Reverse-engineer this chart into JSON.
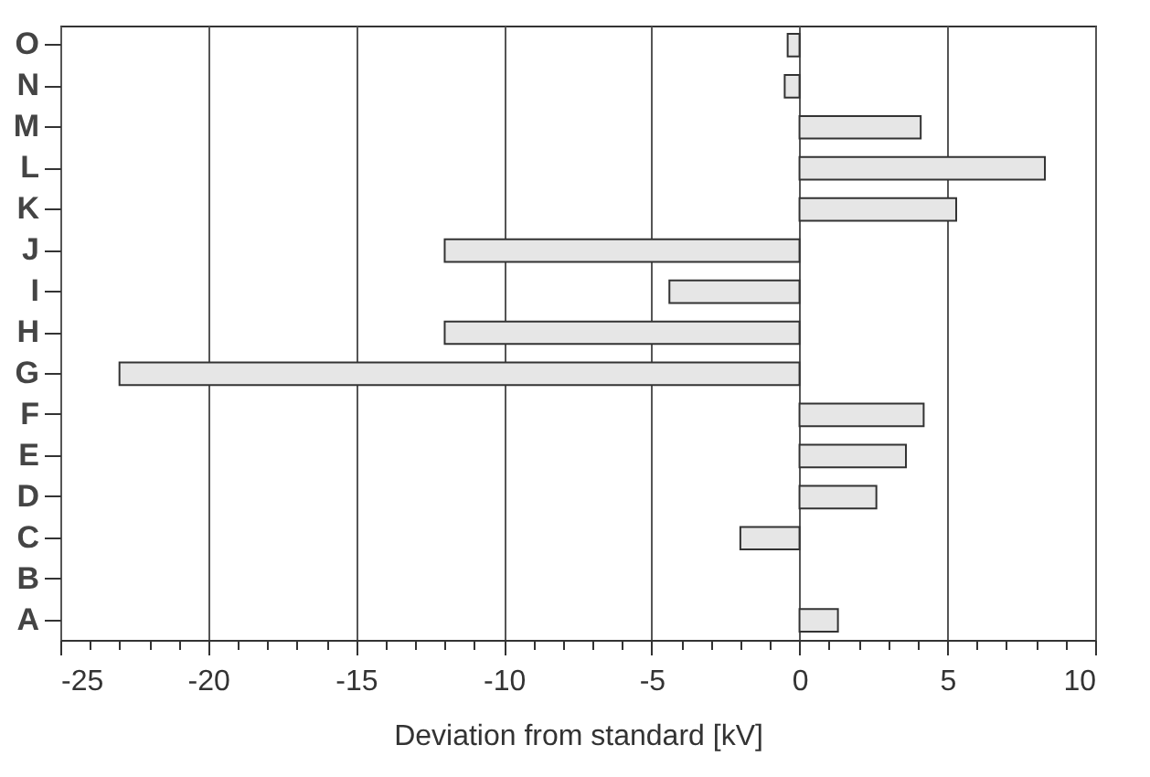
{
  "chart_data": {
    "type": "bar",
    "orientation": "horizontal",
    "xlabel": "Deviation from standard [kV]",
    "categories": [
      "O",
      "N",
      "M",
      "L",
      "K",
      "J",
      "I",
      "H",
      "G",
      "F",
      "E",
      "D",
      "C",
      "B",
      "A"
    ],
    "values": [
      -0.4,
      -0.5,
      4.1,
      8.3,
      5.3,
      -12.0,
      -4.4,
      -12.0,
      -23.0,
      4.2,
      3.6,
      2.6,
      -2.0,
      null,
      1.3
    ],
    "color": "#e6e6e6",
    "xlim": [
      -25,
      10
    ],
    "xticks": [
      -25,
      {
        "value": -24,
        "label": null
      },
      {
        "value": -23,
        "label": null
      },
      {
        "value": -22,
        "label": null
      },
      {
        "value": -21,
        "label": null
      },
      -20,
      {
        "value": -19,
        "label": null
      },
      {
        "value": -18,
        "label": null
      },
      {
        "value": -17,
        "label": null
      },
      {
        "value": -16,
        "label": null
      },
      -15,
      {
        "value": -14,
        "label": null
      },
      {
        "value": -13,
        "label": null
      },
      {
        "value": -12,
        "label": null
      },
      {
        "value": -11,
        "label": null
      },
      -10,
      {
        "value": -9,
        "label": null
      },
      {
        "value": -8,
        "label": null
      },
      {
        "value": -7,
        "label": null
      },
      {
        "value": -6,
        "label": null
      },
      -5,
      {
        "value": -4,
        "label": null
      },
      {
        "value": -3,
        "label": null
      },
      {
        "value": -2,
        "label": null
      },
      {
        "value": -1,
        "label": null
      },
      0,
      {
        "value": 1,
        "label": null
      },
      {
        "value": 2,
        "label": null
      },
      {
        "value": 3,
        "label": null
      },
      {
        "value": 4,
        "label": null
      },
      5,
      {
        "value": 6,
        "label": null
      },
      {
        "value": 7,
        "label": null
      },
      {
        "value": 8,
        "label": null
      },
      {
        "value": 9,
        "label": null
      },
      10
    ],
    "grid": "x"
  }
}
